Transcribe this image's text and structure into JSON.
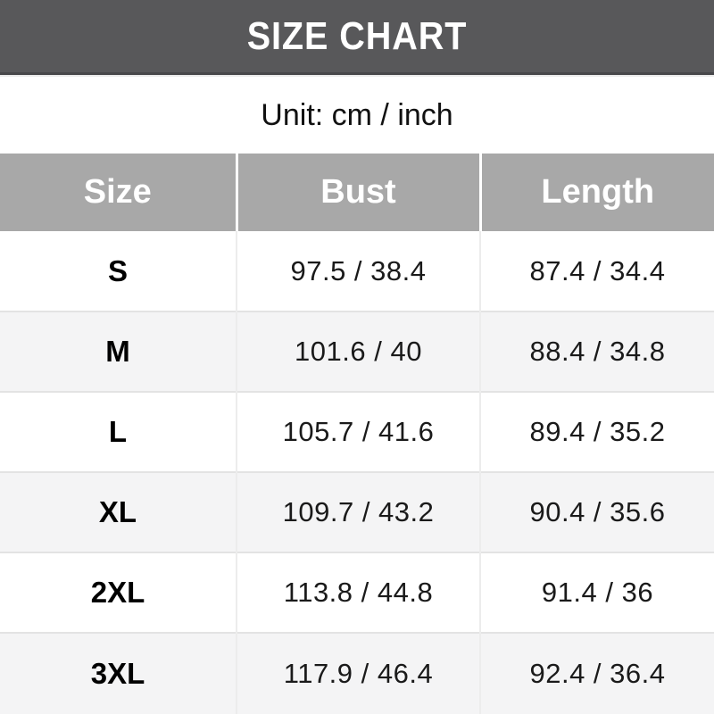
{
  "title": "SIZE CHART",
  "unit_note": "Unit: cm / inch",
  "table": {
    "columns": [
      "Size",
      "Bust",
      "Length"
    ],
    "rows": [
      {
        "size": "S",
        "bust": "97.5 / 38.4",
        "length": "87.4 / 34.4"
      },
      {
        "size": "M",
        "bust": "101.6 / 40",
        "length": "88.4 / 34.8"
      },
      {
        "size": "L",
        "bust": "105.7 / 41.6",
        "length": "89.4 / 35.2"
      },
      {
        "size": "XL",
        "bust": "109.7 / 43.2",
        "length": "90.4 / 35.6"
      },
      {
        "size": "2XL",
        "bust": "113.8 / 44.8",
        "length": "91.4 / 36"
      },
      {
        "size": "3XL",
        "bust": "117.9 / 46.4",
        "length": "92.4 / 36.4"
      }
    ]
  },
  "chart_data": {
    "type": "table",
    "title": "SIZE CHART",
    "unit": "cm / inch",
    "columns": [
      "Size",
      "Bust",
      "Length"
    ],
    "rows": [
      [
        "S",
        "97.5 / 38.4",
        "87.4 / 34.4"
      ],
      [
        "M",
        "101.6 / 40",
        "88.4 / 34.8"
      ],
      [
        "L",
        "105.7 / 41.6",
        "89.4 / 35.2"
      ],
      [
        "XL",
        "109.7 / 43.2",
        "90.4 / 35.6"
      ],
      [
        "2XL",
        "113.8 / 44.8",
        "91.4 / 36"
      ],
      [
        "3XL",
        "117.9 / 46.4",
        "92.4 / 36.4"
      ]
    ],
    "sizes": [
      "S",
      "M",
      "L",
      "XL",
      "2XL",
      "3XL"
    ],
    "bust_cm": [
      97.5,
      101.6,
      105.7,
      109.7,
      113.8,
      117.9
    ],
    "bust_inch": [
      38.4,
      40,
      41.6,
      43.2,
      44.8,
      46.4
    ],
    "length_cm": [
      87.4,
      88.4,
      89.4,
      90.4,
      91.4,
      92.4
    ],
    "length_inch": [
      34.4,
      34.8,
      35.2,
      35.6,
      36,
      36.4
    ]
  },
  "colors": {
    "title_bar_bg": "#58585a",
    "title_text": "#ffffff",
    "table_head_bg": "#a8a8a8",
    "table_head_text": "#ffffff",
    "row_alt_bg": "#f4f4f5",
    "body_text": "#1a1a1a",
    "row_divider": "#e3e3e3"
  }
}
